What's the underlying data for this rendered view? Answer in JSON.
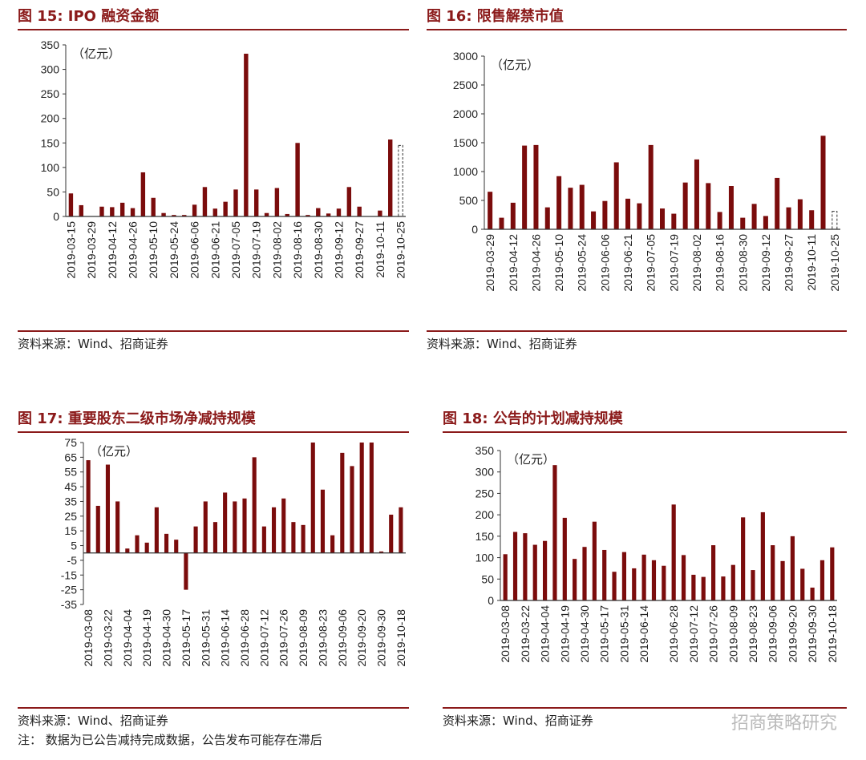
{
  "chart_data": [
    {
      "id": "c15",
      "type": "bar",
      "title": "图 15:  IPO 融资金额",
      "ylabel": "（亿元）",
      "source": "资料来源：Wind、招商证券",
      "ylim": [
        0,
        350
      ],
      "yticks": [
        0,
        50,
        100,
        150,
        200,
        250,
        300,
        350
      ],
      "xtick_labels": [
        "2019-03-15",
        "2019-03-29",
        "2019-04-12",
        "2019-04-26",
        "2019-05-10",
        "2019-05-24",
        "2019-06-06",
        "2019-06-21",
        "2019-07-05",
        "2019-07-19",
        "2019-08-02",
        "2019-08-16",
        "2019-08-30",
        "2019-09-12",
        "2019-09-27",
        "2019-10-11",
        "2019-10-25"
      ],
      "values": [
        47,
        23,
        0,
        20,
        19,
        28,
        17,
        90,
        38,
        7,
        3,
        3,
        24,
        60,
        16,
        30,
        55,
        332,
        55,
        7,
        58,
        5,
        150,
        3,
        17,
        6,
        16,
        60,
        20,
        0,
        12,
        157,
        145
      ],
      "dashed_last": true
    },
    {
      "id": "c16",
      "type": "bar",
      "title": "图 16:  限售解禁市值",
      "ylabel": "（亿元）",
      "source": "资料来源：Wind、招商证券",
      "ylim": [
        0,
        3000
      ],
      "yticks": [
        0,
        500,
        1000,
        1500,
        2000,
        2500,
        3000
      ],
      "xtick_labels": [
        "2019-03-29",
        "2019-04-12",
        "2019-04-26",
        "2019-05-10",
        "2019-05-24",
        "2019-06-06",
        "2019-06-21",
        "2019-07-05",
        "2019-07-19",
        "2019-08-02",
        "2019-08-16",
        "2019-08-30",
        "2019-09-12",
        "2019-09-27",
        "2019-10-11",
        "2019-10-25"
      ],
      "values": [
        650,
        200,
        460,
        1450,
        1460,
        380,
        920,
        720,
        770,
        310,
        490,
        1160,
        530,
        450,
        1460,
        360,
        270,
        810,
        1210,
        800,
        300,
        750,
        200,
        440,
        230,
        890,
        380,
        520,
        330,
        1620,
        310
      ],
      "dashed_last": true
    },
    {
      "id": "c17",
      "type": "bar",
      "title": "图 17:  重要股东二级市场净减持规模",
      "ylabel": "（亿元）",
      "source": "资料来源：Wind、招商证券",
      "note": "注：  数据为已公告减持完成数据，公告发布可能存在滞后",
      "ylim": [
        -35,
        75
      ],
      "yticks": [
        -35,
        -25,
        -15,
        -5,
        5,
        15,
        25,
        35,
        45,
        55,
        65,
        75
      ],
      "xtick_labels": [
        "2019-03-08",
        "2019-03-22",
        "2019-04-04",
        "2019-04-19",
        "2019-04-30",
        "2019-05-17",
        "2019-05-31",
        "2019-06-14",
        "2019-06-28",
        "2019-07-12",
        "2019-07-26",
        "2019-08-09",
        "2019-08-23",
        "2019-09-06",
        "2019-09-20",
        "2019-09-30",
        "2019-10-18"
      ],
      "values": [
        63,
        32,
        60,
        35,
        3,
        12,
        7,
        31,
        13,
        9,
        -25,
        18,
        35,
        21,
        41,
        35,
        37,
        65,
        18,
        31,
        37,
        21,
        19,
        75,
        43,
        12,
        68,
        59,
        75,
        75,
        1,
        26,
        31
      ],
      "dashed_last": false
    },
    {
      "id": "c18",
      "type": "bar",
      "title": "图 18:  公告的计划减持规模",
      "ylabel": "（亿元）",
      "source": "资料来源：Wind、招商证券",
      "ylim": [
        0,
        350
      ],
      "yticks": [
        0,
        50,
        100,
        150,
        200,
        250,
        300,
        350
      ],
      "xtick_labels": [
        "2019-03-08",
        "2019-03-22",
        "2019-04-04",
        "2019-04-19",
        "2019-04-30",
        "2019-05-17",
        "2019-05-31",
        "2019-06-14",
        "2019-06-28",
        "2019-07-12",
        "2019-07-26",
        "2019-08-09",
        "2019-08-23",
        "2019-09-06",
        "2019-09-20",
        "2019-09-30",
        "2019-10-18"
      ],
      "values": [
        108,
        160,
        157,
        130,
        139,
        316,
        193,
        97,
        125,
        184,
        118,
        67,
        113,
        75,
        107,
        94,
        81,
        224,
        106,
        60,
        55,
        129,
        56,
        83,
        194,
        71,
        206,
        129,
        92,
        150,
        74,
        30,
        94,
        124
      ],
      "dashed_last": false
    }
  ],
  "watermark": "招商策略研究",
  "bar_color": "#7b0c0c",
  "accent_color": "#8b1a1a"
}
